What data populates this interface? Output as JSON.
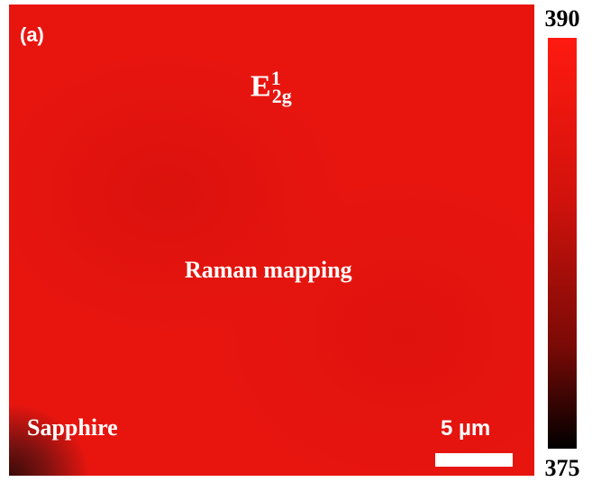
{
  "panel_label": "(a)",
  "peak": {
    "symbol": "E",
    "superscript": "1",
    "subscript": "2g"
  },
  "caption": "Raman mapping",
  "substrate": "Sapphire",
  "scale_bar": "5 µm",
  "colorbar": {
    "max": 390,
    "min": 375
  }
}
